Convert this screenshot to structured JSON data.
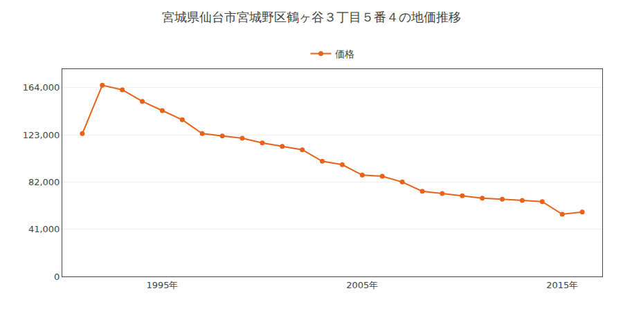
{
  "chart_data": {
    "type": "line",
    "title": "宮城県仙台市宮城野区鶴ヶ谷３丁目５番４の地価推移",
    "x": [
      1991,
      1992,
      1993,
      1994,
      1995,
      1996,
      1997,
      1998,
      1999,
      2000,
      2001,
      2002,
      2003,
      2004,
      2005,
      2006,
      2007,
      2008,
      2009,
      2010,
      2011,
      2012,
      2013,
      2014,
      2015,
      2016
    ],
    "series": [
      {
        "name": "価格",
        "color": "#E8621A",
        "values": [
          124000,
          166000,
          162000,
          152000,
          144000,
          136000,
          124000,
          122000,
          120000,
          116000,
          113000,
          110000,
          100000,
          97000,
          88000,
          87000,
          82000,
          74000,
          72000,
          70000,
          68000,
          67000,
          66000,
          65000,
          54000,
          56000
        ]
      }
    ],
    "marker": "circle",
    "xlim": [
      1990,
      2017
    ],
    "xticks": [
      {
        "value": 1995,
        "label": "1995年"
      },
      {
        "value": 2005,
        "label": "2005年"
      },
      {
        "value": 2015,
        "label": "2015年"
      }
    ],
    "ylim": [
      0,
      180000
    ],
    "yticks": [
      0,
      {
        "value": 41000,
        "label": "41,000"
      },
      {
        "value": 82000,
        "label": "82,000"
      },
      {
        "value": 123000,
        "label": "123,000"
      },
      {
        "value": 164000,
        "label": "164,000"
      }
    ],
    "grid": "y",
    "legend": "top"
  }
}
